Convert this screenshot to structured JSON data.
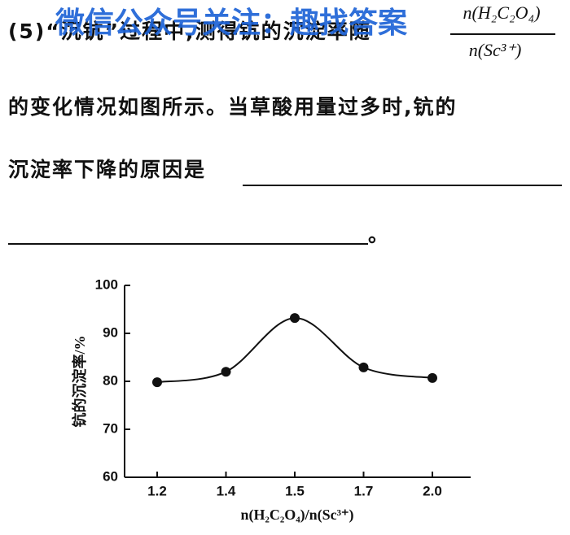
{
  "question": {
    "line1": "(5)“沉钪”过程中,测得钪的沉淀率随",
    "fraction_numerator": "n(H₂C₂O₄)",
    "fraction_denominator": "n(Sc³⁺)",
    "line2": "的变化情况如图所示。当草酸用量过多时,钪的",
    "line3": "沉淀率下降的原因是",
    "line4_end": "。"
  },
  "watermark": "微信公众号关注：趣找答案",
  "chart_data": {
    "type": "line",
    "categories": [
      "1.2",
      "1.4",
      "1.5",
      "1.7",
      "2.0"
    ],
    "values": [
      79.8,
      82.0,
      93.2,
      82.9,
      80.7
    ],
    "color": "#111111",
    "ylim": [
      60,
      100
    ],
    "yticks": [
      60,
      70,
      80,
      90,
      100
    ],
    "x_label": "n(H₂C₂O₄)/n(Sc³⁺)",
    "y_label": "钪的沉淀率/%"
  }
}
